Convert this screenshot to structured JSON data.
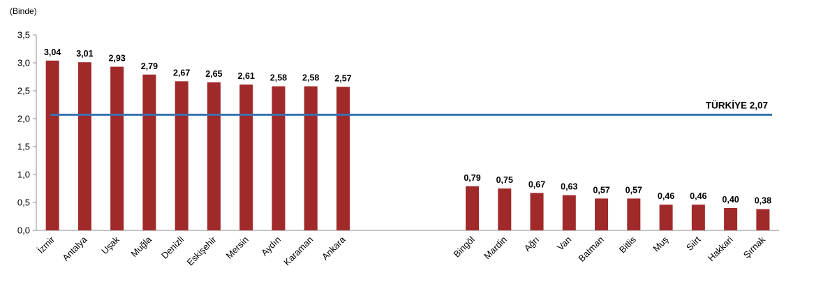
{
  "chart_data": {
    "type": "bar",
    "unit_label": "(Binde)",
    "categories": [
      "İzmir",
      "Antalya",
      "Uşak",
      "Muğla",
      "Denizli",
      "Eskişehir",
      "Mersin",
      "Aydın",
      "Karaman",
      "Ankara",
      "",
      "",
      "",
      "Bingöl",
      "Mardin",
      "Ağrı",
      "Van",
      "Batman",
      "Bitlis",
      "Muş",
      "Siirt",
      "Hakkari",
      "Şırnak"
    ],
    "values": [
      3.04,
      3.01,
      2.93,
      2.79,
      2.67,
      2.65,
      2.61,
      2.58,
      2.58,
      2.57,
      null,
      null,
      null,
      0.79,
      0.75,
      0.67,
      0.63,
      0.57,
      0.57,
      0.46,
      0.46,
      0.4,
      0.38
    ],
    "data_labels": [
      "3,04",
      "3,01",
      "2,93",
      "2,79",
      "2,67",
      "2,65",
      "2,61",
      "2,58",
      "2,58",
      "2,57",
      "",
      "",
      "",
      "0,79",
      "0,75",
      "0,67",
      "0,63",
      "0,57",
      "0,57",
      "0,46",
      "0,46",
      "0,40",
      "0,38"
    ],
    "ylim": [
      0,
      3.5
    ],
    "y_ticks": [
      0,
      0.5,
      1.0,
      1.5,
      2.0,
      2.5,
      3.0,
      3.5
    ],
    "y_tick_labels": [
      "0,0",
      "0,5",
      "1,0",
      "1,5",
      "2,0",
      "2,5",
      "3,0",
      "3,5"
    ],
    "reference_line": {
      "value": 2.07,
      "label": "TÜRKİYE 2,07"
    },
    "grid": false,
    "legend": "none",
    "colors": {
      "bar": "#a0292a",
      "reference_line": "#3a73b0",
      "axis": "#8c8c8c"
    }
  }
}
